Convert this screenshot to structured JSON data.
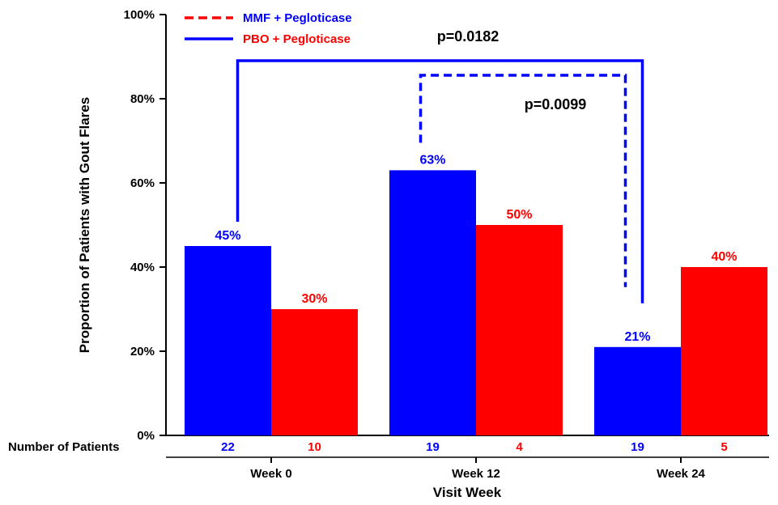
{
  "chart_data": {
    "type": "bar",
    "title": "",
    "xlabel": "Visit Week",
    "ylabel": "Proportion of Patients with Gout Flares",
    "ylim": [
      0,
      100
    ],
    "yticks": [
      "0%",
      "20%",
      "40%",
      "60%",
      "80%",
      "100%"
    ],
    "categories": [
      "Week 0",
      "Week 12",
      "Week 24"
    ],
    "series": [
      {
        "name": "PBO + Pegloticase",
        "color": "#0000ff",
        "values": [
          45,
          63,
          21
        ],
        "labels": [
          "45%",
          "63%",
          "21%"
        ],
        "patients": [
          "22",
          "19",
          "19"
        ]
      },
      {
        "name": "MMF + Pegloticase",
        "color": "#ff0000",
        "values": [
          30,
          50,
          40
        ],
        "labels": [
          "30%",
          "50%",
          "40%"
        ],
        "patients": [
          "10",
          "4",
          "5"
        ]
      }
    ],
    "legend": {
      "placement": "top-left",
      "entries": [
        {
          "label": "MMF + Pegloticase",
          "line_style": "dashed",
          "color": "#ff0000",
          "text_color": "#0000ff"
        },
        {
          "label": "PBO + Pegloticase",
          "line_style": "solid",
          "color": "#0000ff",
          "text_color": "#ff0000"
        }
      ]
    },
    "patient_row_label": "Number of Patients",
    "annotations": [
      {
        "text": "p=0.0182",
        "style": "solid",
        "color": "#0000ff",
        "from": "Week 0",
        "to": "Week 24"
      },
      {
        "text": "p=0.0099",
        "style": "dashed",
        "color": "#0000ff",
        "from": "Week 12",
        "to": "Week 24"
      }
    ]
  }
}
